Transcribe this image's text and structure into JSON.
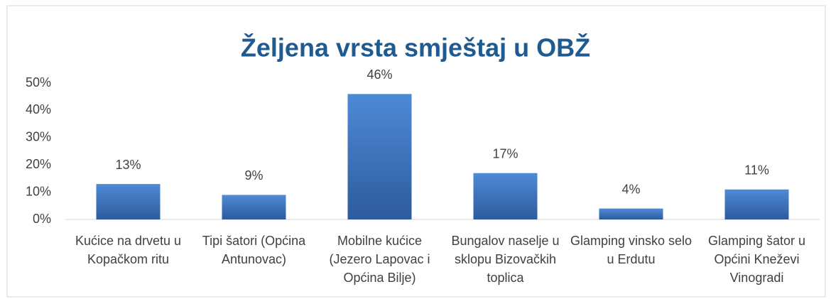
{
  "chart_data": {
    "type": "bar",
    "title": "Željena vrsta smještaj u OBŽ",
    "categories": [
      "Kućice na drvetu u Kopačkom ritu",
      "Tipi šatori (Općina Antunovac)",
      "Mobilne kućice (Jezero Lapovac i Općina Bilje)",
      "Bungalov naselje u sklopu Bizovačkih toplica",
      "Glamping vinsko selo u Erdutu",
      "Glamping šator u Općini Kneževi Vinogradi"
    ],
    "values": [
      13,
      9,
      46,
      17,
      4,
      11
    ],
    "value_labels": [
      "13%",
      "9%",
      "46%",
      "17%",
      "4%",
      "11%"
    ],
    "color": "#3b72bd",
    "ylim": [
      0,
      50
    ],
    "yticks": [
      {
        "value": 0,
        "label": "0%"
      },
      {
        "value": 10,
        "label": "10%"
      },
      {
        "value": 20,
        "label": "20%"
      },
      {
        "value": 30,
        "label": "30%"
      },
      {
        "value": 40,
        "label": "40%"
      },
      {
        "value": 50,
        "label": "50%"
      }
    ],
    "grid": false
  }
}
